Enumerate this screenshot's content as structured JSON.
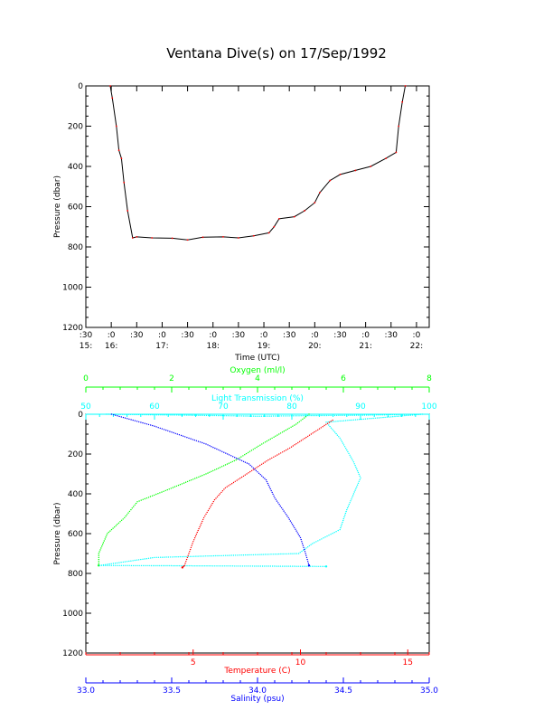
{
  "title": "Ventana Dive(s) on 17/Sep/1992",
  "chart_data": [
    {
      "type": "line",
      "title": "Ventana Dive(s) on 17/Sep/1992",
      "xlabel": "Time (UTC)",
      "ylabel": "Pressure (dbar)",
      "xlim": [
        15.5,
        22.25
      ],
      "ylim": [
        1200,
        0
      ],
      "x_tick_labels": [
        {
          "x": 15.5,
          "top": ":30",
          "bottom": "15:"
        },
        {
          "x": 16.0,
          "top": ":0",
          "bottom": "16:"
        },
        {
          "x": 16.5,
          "top": ":30",
          "bottom": ""
        },
        {
          "x": 17.0,
          "top": ":0",
          "bottom": "17:"
        },
        {
          "x": 17.5,
          "top": ":30",
          "bottom": ""
        },
        {
          "x": 18.0,
          "top": ":0",
          "bottom": "18:"
        },
        {
          "x": 18.5,
          "top": ":30",
          "bottom": ""
        },
        {
          "x": 19.0,
          "top": ":0",
          "bottom": "19:"
        },
        {
          "x": 19.5,
          "top": ":30",
          "bottom": ""
        },
        {
          "x": 20.0,
          "top": ":0",
          "bottom": "20:"
        },
        {
          "x": 20.5,
          "top": ":30",
          "bottom": ""
        },
        {
          "x": 21.0,
          "top": ":0",
          "bottom": "21:"
        },
        {
          "x": 21.5,
          "top": ":30",
          "bottom": ""
        },
        {
          "x": 22.0,
          "top": ":0",
          "bottom": "22:"
        }
      ],
      "y_ticks": [
        0,
        200,
        400,
        600,
        800,
        1000,
        1200
      ],
      "series": [
        {
          "color": "#ff0000",
          "points": [
            [
              15.98,
              0
            ],
            [
              16.02,
              60
            ],
            [
              16.1,
              200
            ],
            [
              16.15,
              320
            ],
            [
              16.2,
              360
            ],
            [
              16.25,
              480
            ],
            [
              16.32,
              620
            ],
            [
              16.42,
              755
            ],
            [
              16.5,
              750
            ],
            [
              16.8,
              755
            ],
            [
              17.2,
              757
            ],
            [
              17.5,
              765
            ],
            [
              17.8,
              752
            ],
            [
              18.2,
              750
            ],
            [
              18.5,
              755
            ],
            [
              18.8,
              745
            ],
            [
              19.1,
              730
            ],
            [
              19.2,
              700
            ],
            [
              19.3,
              660
            ],
            [
              19.6,
              650
            ],
            [
              19.8,
              620
            ],
            [
              20.0,
              580
            ],
            [
              20.1,
              530
            ],
            [
              20.3,
              470
            ],
            [
              20.5,
              440
            ],
            [
              20.8,
              420
            ],
            [
              21.1,
              400
            ],
            [
              21.4,
              360
            ],
            [
              21.6,
              330
            ],
            [
              21.65,
              200
            ],
            [
              21.72,
              80
            ],
            [
              21.78,
              0
            ]
          ]
        }
      ],
      "grid": false
    },
    {
      "type": "scatter",
      "ylabel": "Pressure (dbar)",
      "ylim": [
        1200,
        0
      ],
      "y_ticks": [
        0,
        200,
        400,
        600,
        800,
        1000,
        1200
      ],
      "axes": [
        {
          "label": "Oxygen (ml/l)",
          "position": "top",
          "color": "#00ff00",
          "range": [
            0,
            8
          ],
          "ticks": [
            0,
            2,
            4,
            6,
            8
          ]
        },
        {
          "label": "Light Transmission (%)",
          "position": "top",
          "color": "#00ffff",
          "range": [
            50,
            100
          ],
          "ticks": [
            50,
            60,
            70,
            80,
            90,
            100
          ]
        },
        {
          "label": "Temperature (C)",
          "position": "bottom",
          "color": "#ff0000",
          "range": [
            0,
            16
          ],
          "ticks": [
            5,
            10,
            15
          ]
        },
        {
          "label": "Salinity (psu)",
          "position": "bottom",
          "color": "#0000ff",
          "range": [
            33.0,
            35.0
          ],
          "ticks": [
            "33.0",
            "33.5",
            "34.0",
            "34.5",
            "35.0"
          ]
        }
      ],
      "series": [
        {
          "axis": "Oxygen (ml/l)",
          "color": "#00ff00",
          "points": [
            [
              5.2,
              0
            ],
            [
              4.9,
              50
            ],
            [
              4.1,
              150
            ],
            [
              3.5,
              230
            ],
            [
              2.8,
              300
            ],
            [
              1.9,
              380
            ],
            [
              1.2,
              440
            ],
            [
              0.9,
              520
            ],
            [
              0.5,
              600
            ],
            [
              0.3,
              700
            ],
            [
              0.3,
              760
            ]
          ]
        },
        {
          "axis": "Light Transmission (%)",
          "color": "#00ffff",
          "points": [
            [
              53,
              0
            ],
            [
              65,
              5
            ],
            [
              75,
              10
            ],
            [
              90,
              5
            ],
            [
              99,
              0
            ],
            [
              85,
              40
            ],
            [
              87,
              120
            ],
            [
              89,
              240
            ],
            [
              90,
              320
            ],
            [
              89,
              400
            ],
            [
              88,
              480
            ],
            [
              87,
              580
            ],
            [
              83,
              650
            ],
            [
              81,
              700
            ],
            [
              60,
              720
            ],
            [
              52,
              760
            ],
            [
              85,
              765
            ]
          ]
        },
        {
          "axis": "Temperature (C)",
          "color": "#ff0000",
          "points": [
            [
              11.5,
              30
            ],
            [
              10.5,
              100
            ],
            [
              9.5,
              170
            ],
            [
              8.5,
              230
            ],
            [
              7.5,
              300
            ],
            [
              6.5,
              370
            ],
            [
              6.0,
              430
            ],
            [
              5.5,
              520
            ],
            [
              5.0,
              640
            ],
            [
              4.8,
              700
            ],
            [
              4.6,
              760
            ],
            [
              4.5,
              770
            ]
          ]
        },
        {
          "axis": "Salinity (psu)",
          "color": "#0000ff",
          "points": [
            [
              33.15,
              0
            ],
            [
              33.4,
              60
            ],
            [
              33.7,
              150
            ],
            [
              33.95,
              250
            ],
            [
              34.05,
              330
            ],
            [
              34.1,
              420
            ],
            [
              34.18,
              520
            ],
            [
              34.25,
              620
            ],
            [
              34.28,
              700
            ],
            [
              34.3,
              760
            ]
          ]
        }
      ],
      "grid": false
    }
  ]
}
